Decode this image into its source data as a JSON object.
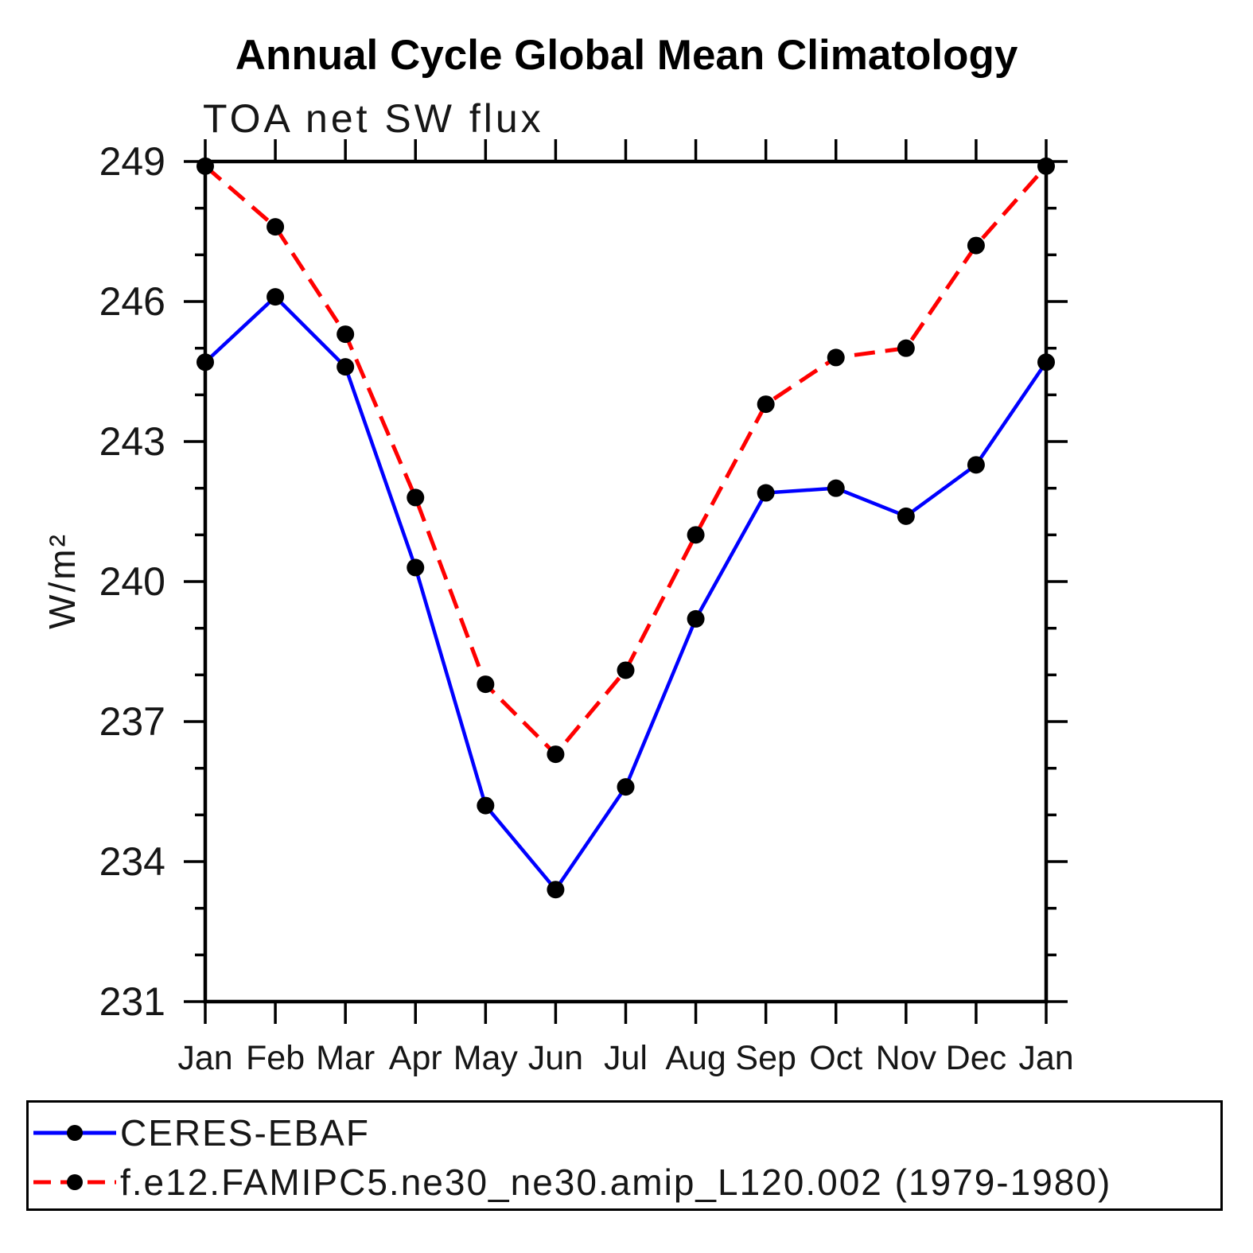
{
  "chart_data": {
    "type": "line",
    "title": "Annual Cycle Global Mean Climatology",
    "subtitle": "TOA net SW flux",
    "xlabel": "",
    "ylabel": "W/m²",
    "ylim": [
      231,
      249
    ],
    "y_major_ticks": [
      231,
      234,
      237,
      240,
      243,
      246,
      249
    ],
    "y_minor_tick_step": 1,
    "x_categories": [
      "Jan",
      "Feb",
      "Mar",
      "Apr",
      "May",
      "Jun",
      "Jul",
      "Aug",
      "Sep",
      "Oct",
      "Nov",
      "Dec",
      "Jan"
    ],
    "grid": false,
    "legend_position": "bottom-left-box",
    "axis_color": "#000000",
    "series": [
      {
        "name": "CERES-EBAF",
        "line_color": "#0000ff",
        "line_style": "solid",
        "marker": "filled-circle",
        "marker_color": "#000000",
        "values": [
          244.7,
          246.1,
          244.6,
          240.3,
          235.2,
          233.4,
          235.6,
          239.2,
          241.9,
          242.0,
          241.4,
          242.5,
          244.7
        ]
      },
      {
        "name": "f.e12.FAMIPC5.ne30_ne30.amip_L120.002 (1979-1980)",
        "line_color": "#ff0000",
        "line_style": "dashed",
        "marker": "filled-circle",
        "marker_color": "#000000",
        "values": [
          248.9,
          247.6,
          245.3,
          241.8,
          237.8,
          236.3,
          238.1,
          241.0,
          243.8,
          244.8,
          245.0,
          247.2,
          248.9
        ]
      }
    ]
  }
}
